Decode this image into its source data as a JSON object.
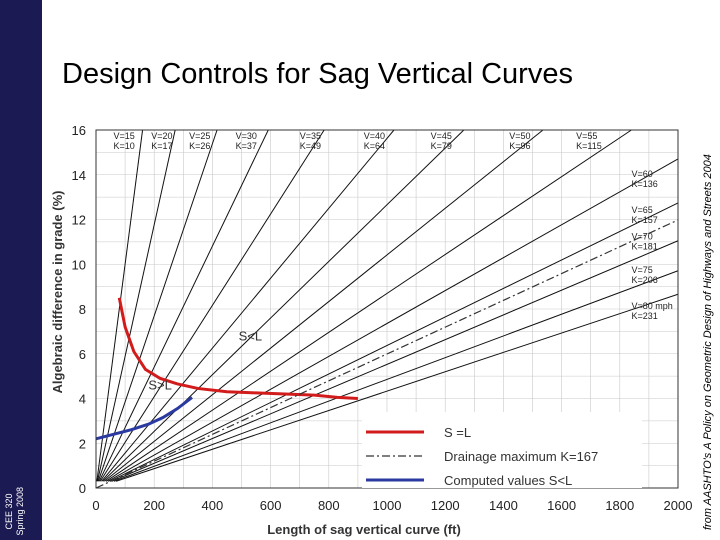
{
  "slide": {
    "title": "Design Controls for Sag Vertical Curves",
    "course": "CEE 320",
    "term": "Spring 2008",
    "source_prefix": "from AASHTO's ",
    "source_title": "A Policy on Geometric Design of Highways and Streets",
    "source_year": " 2004",
    "sidebar_color": "#1c1a52"
  },
  "chart_data": {
    "type": "line",
    "xlabel": "Length of sag vertical curve (ft)",
    "ylabel": "Algebraic difference in grade (%)",
    "xlim": [
      0,
      2000
    ],
    "ylim": [
      0,
      16
    ],
    "xticks": [
      0,
      200,
      400,
      600,
      800,
      1000,
      1200,
      1400,
      1600,
      1800,
      2000
    ],
    "yticks": [
      0,
      2,
      4,
      6,
      8,
      10,
      12,
      14,
      16
    ],
    "grid": true,
    "k_lines": [
      {
        "speed": "V=15",
        "k": 10,
        "klabel": "K=10"
      },
      {
        "speed": "V=20",
        "k": 17,
        "klabel": "K=17"
      },
      {
        "speed": "V=25",
        "k": 26,
        "klabel": "K=26"
      },
      {
        "speed": "V=30",
        "k": 37,
        "klabel": "K=37"
      },
      {
        "speed": "V=35",
        "k": 49,
        "klabel": "K=49"
      },
      {
        "speed": "V=40",
        "k": 64,
        "klabel": "K=64"
      },
      {
        "speed": "V=45",
        "k": 79,
        "klabel": "K=79"
      },
      {
        "speed": "V=50",
        "k": 96,
        "klabel": "K=96"
      },
      {
        "speed": "V=55",
        "k": 115,
        "klabel": "K=115"
      },
      {
        "speed": "V=60",
        "k": 136,
        "klabel": "K=136"
      },
      {
        "speed": "V=65",
        "k": 157,
        "klabel": "K=157"
      },
      {
        "speed": "V=70",
        "k": 181,
        "klabel": "K=181"
      },
      {
        "speed": "V=75",
        "k": 206,
        "klabel": "K=206"
      },
      {
        "speed": "V=80 mph",
        "k": 231,
        "klabel": "K=231"
      }
    ],
    "drainage_k": 167,
    "series": [
      {
        "name": "S =L",
        "color": "#d21c1c",
        "x": [
          80,
          100,
          130,
          170,
          220,
          280,
          350,
          450,
          550,
          650,
          750,
          830,
          900
        ],
        "y": [
          8.5,
          7.2,
          6.1,
          5.3,
          4.9,
          4.65,
          4.45,
          4.3,
          4.25,
          4.2,
          4.15,
          4.05,
          4.0
        ]
      },
      {
        "name": "Drainage maximum K=167",
        "color": "#333333",
        "x": [
          0,
          2000
        ],
        "y": [
          0,
          11.98
        ]
      },
      {
        "name": "Computed values S<L",
        "color": "#2b3aa0",
        "x": [
          0,
          60,
          120,
          180,
          230,
          280,
          330
        ],
        "y": [
          2.2,
          2.4,
          2.6,
          2.85,
          3.15,
          3.55,
          4.05
        ]
      }
    ],
    "annotations": [
      {
        "text": "S<L",
        "x": 490,
        "y": 6.6
      },
      {
        "text": "S>L",
        "x": 180,
        "y": 4.4
      }
    ],
    "legend": {
      "position": "bottom-right"
    }
  }
}
